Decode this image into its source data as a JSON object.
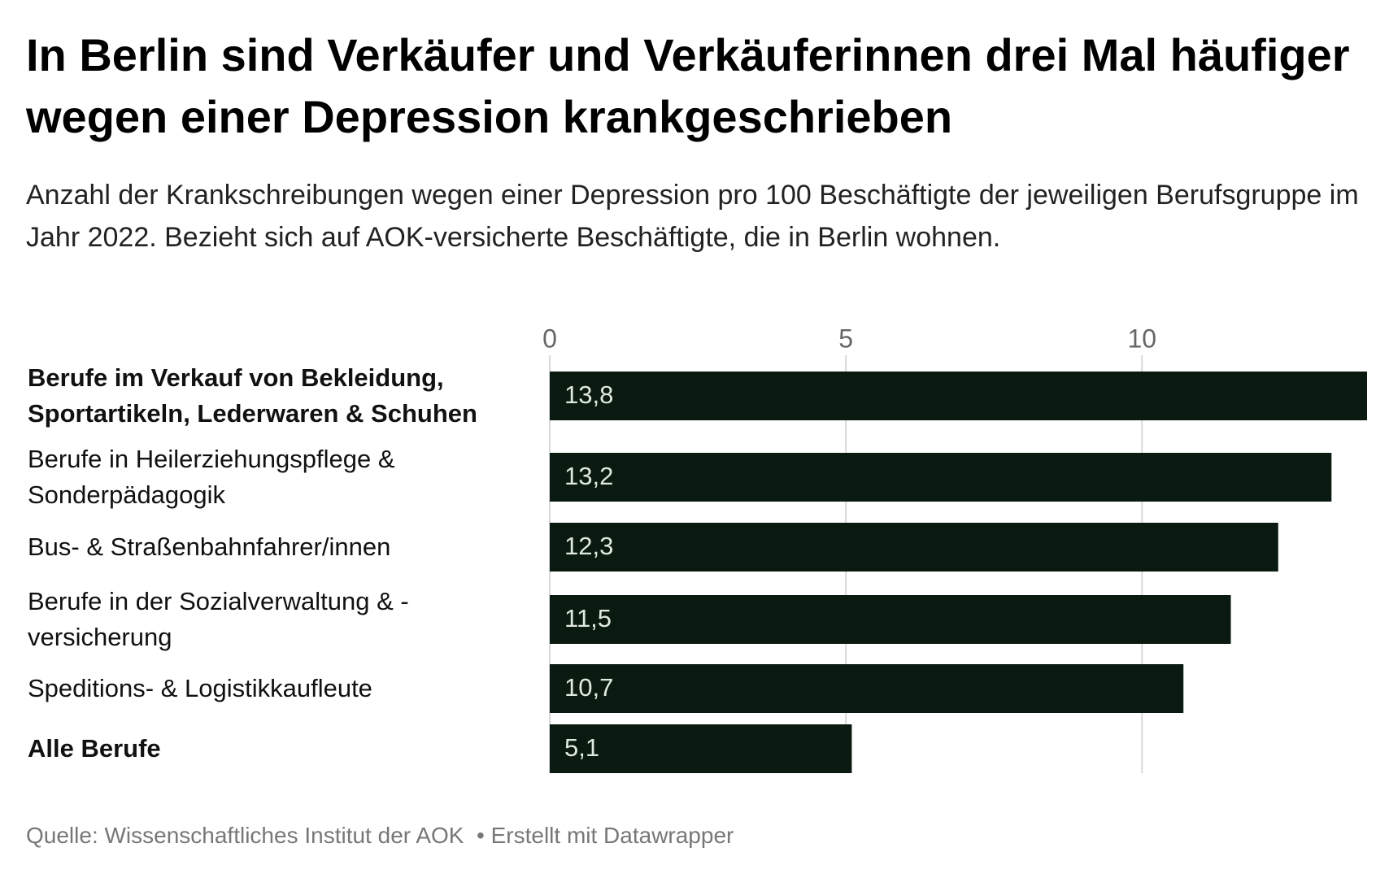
{
  "chart_data": {
    "type": "bar",
    "title": "In Berlin sind Verkäufer und Verkäuferinnen drei Mal häufiger wegen einer Depression krankgeschrieben",
    "subtitle": "Anzahl der Krankschreibungen wegen einer Depression pro 100 Beschäftigte der jeweiligen Berufsgruppe im Jahr 2022. Bezieht sich auf AOK-versicherte Beschäftigte, die in Berlin wohnen.",
    "categories": [
      "Berufe im Verkauf von Bekleidung, Sportartikeln, Lederwaren & Schuhen",
      "Berufe in Heilerziehungspflege & Sonderpädagogik",
      "Bus- & Straßenbahnfahrer/innen",
      "Berufe in der Sozialverwaltung & -versicherung",
      "Speditions- & Logistikkaufleute",
      "Alle Berufe"
    ],
    "bold_categories": [
      0,
      5
    ],
    "values": [
      13.8,
      13.2,
      12.3,
      11.5,
      10.7,
      5.1
    ],
    "value_labels": [
      "13,8",
      "13,2",
      "12,3",
      "11,5",
      "10,7",
      "5,1"
    ],
    "color": "#0b1a10",
    "xlim": [
      0,
      13.8
    ],
    "xticks": [
      0,
      5,
      10
    ],
    "grid": true,
    "source": "Quelle: Wissenschaftliches Institut der AOK",
    "credit": "Erstellt mit Datawrapper"
  }
}
